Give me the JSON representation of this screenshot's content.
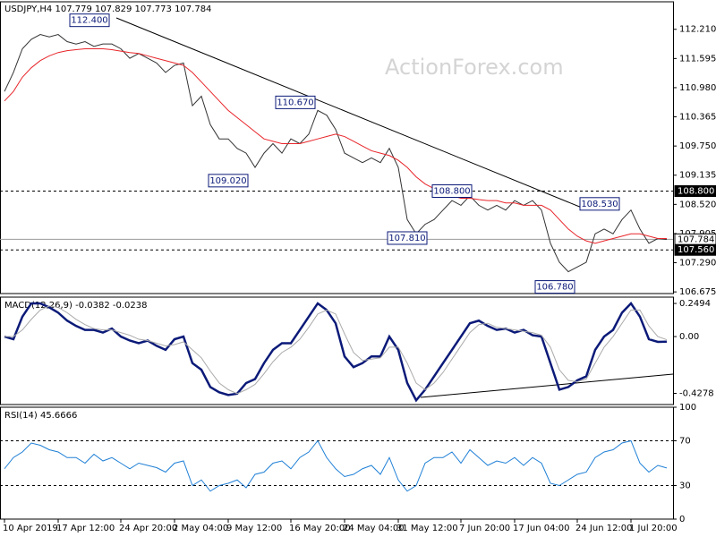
{
  "chart_data": [
    {
      "type": "line",
      "title": "USDJPY,H4  107.779 107.829 107.773 107.784",
      "watermark": "ActionForex.com",
      "categories": [
        "10 Apr 2019",
        null,
        null,
        null,
        null,
        null,
        "17 Apr 12:00",
        null,
        null,
        null,
        null,
        null,
        null,
        "24 Apr 20:00",
        null,
        null,
        null,
        null,
        null,
        "2 May 04:00",
        null,
        null,
        null,
        null,
        null,
        "9 May 12:00",
        null,
        null,
        null,
        null,
        null,
        null,
        "16 May 20:00",
        null,
        null,
        null,
        null,
        null,
        "24 May 04:00",
        null,
        null,
        null,
        null,
        null,
        "31 May 12:00",
        null,
        null,
        null,
        null,
        null,
        null,
        "7 Jun 20:00",
        null,
        null,
        null,
        null,
        null,
        "17 Jun 04:00",
        null,
        null,
        null,
        null,
        null,
        null,
        "24 Jun 12:00",
        null,
        null,
        null,
        null,
        null,
        "1 Jul 20:00",
        null,
        null,
        null,
        null
      ],
      "series": [
        {
          "color": "#333333",
          "values": [
            110.9,
            111.3,
            111.8,
            112.0,
            112.1,
            112.05,
            112.1,
            111.95,
            111.9,
            111.95,
            111.85,
            111.9,
            111.9,
            111.8,
            111.6,
            111.7,
            111.6,
            111.5,
            111.3,
            111.45,
            111.5,
            110.6,
            110.8,
            110.2,
            109.9,
            109.9,
            109.7,
            109.6,
            109.3,
            109.6,
            109.8,
            109.6,
            109.9,
            109.8,
            110.0,
            110.5,
            110.4,
            110.1,
            109.6,
            109.5,
            109.4,
            109.5,
            109.4,
            109.7,
            109.3,
            108.2,
            107.9,
            108.1,
            108.2,
            108.4,
            108.6,
            108.5,
            108.7,
            108.5,
            108.4,
            108.5,
            108.4,
            108.6,
            108.5,
            108.6,
            108.4,
            107.7,
            107.3,
            107.1,
            107.2,
            107.3,
            107.9,
            108.0,
            107.9,
            108.2,
            108.4,
            108.0,
            107.7,
            107.8,
            107.78
          ]
        },
        {
          "color": "#e8252a",
          "values": [
            110.7,
            110.9,
            111.2,
            111.4,
            111.55,
            111.65,
            111.72,
            111.76,
            111.78,
            111.8,
            111.8,
            111.8,
            111.78,
            111.75,
            111.72,
            111.7,
            111.65,
            111.6,
            111.55,
            111.5,
            111.45,
            111.3,
            111.1,
            110.9,
            110.7,
            110.5,
            110.35,
            110.2,
            110.05,
            109.9,
            109.85,
            109.8,
            109.8,
            109.8,
            109.85,
            109.9,
            109.95,
            110.0,
            109.95,
            109.85,
            109.75,
            109.65,
            109.6,
            109.55,
            109.45,
            109.3,
            109.1,
            108.95,
            108.85,
            108.75,
            108.7,
            108.65,
            108.65,
            108.62,
            108.6,
            108.6,
            108.55,
            108.55,
            108.5,
            108.5,
            108.5,
            108.4,
            108.2,
            108.0,
            107.85,
            107.75,
            107.7,
            107.75,
            107.8,
            107.85,
            107.9,
            107.9,
            107.85,
            107.8,
            107.8
          ]
        }
      ],
      "ylim": [
        106.64,
        112.79
      ],
      "yticks": [
        {
          "value": 112.21,
          "label": "112.210"
        },
        {
          "value": 111.595,
          "label": "111.595"
        },
        {
          "value": 110.98,
          "label": "110.980"
        },
        {
          "value": 110.365,
          "label": "110.365"
        },
        {
          "value": 109.75,
          "label": "109.750"
        },
        {
          "value": 109.135,
          "label": "109.135"
        },
        {
          "value": 108.52,
          "label": "108.520"
        },
        {
          "value": 107.905,
          "label": "107.905"
        },
        {
          "value": 107.29,
          "label": "107.290"
        },
        {
          "value": 106.675,
          "label": "106.675"
        }
      ],
      "levels": [
        {
          "value": 108.8,
          "label": "108.800",
          "style": "dashed"
        },
        {
          "value": 107.784,
          "label": "107.784",
          "style": "solid"
        },
        {
          "value": 107.56,
          "label": "107.560",
          "style": "dashed"
        }
      ],
      "annotations": [
        {
          "value": 112.4,
          "label": "112.400"
        },
        {
          "value": 110.67,
          "label": "110.670"
        },
        {
          "value": 109.02,
          "label": "109.020"
        },
        {
          "value": 108.8,
          "label": "108.800"
        },
        {
          "value": 107.81,
          "label": "107.810"
        },
        {
          "value": 108.53,
          "label": "108.530"
        },
        {
          "value": 106.78,
          "label": "106.780"
        }
      ]
    },
    {
      "type": "line",
      "title": "MACD(12,26,9) -0.0382 -0.0238",
      "series": [
        {
          "color": "#0b1a78",
          "values": [
            0.0,
            -0.02,
            0.15,
            0.25,
            0.25,
            0.22,
            0.18,
            0.12,
            0.08,
            0.05,
            0.05,
            0.03,
            0.06,
            0.0,
            -0.03,
            -0.05,
            -0.03,
            -0.07,
            -0.1,
            -0.02,
            0.0,
            -0.2,
            -0.25,
            -0.38,
            -0.42,
            -0.44,
            -0.43,
            -0.35,
            -0.32,
            -0.2,
            -0.1,
            -0.05,
            -0.05,
            0.05,
            0.15,
            0.25,
            0.2,
            0.1,
            -0.15,
            -0.23,
            -0.2,
            -0.15,
            -0.15,
            0.0,
            -0.1,
            -0.35,
            -0.48,
            -0.4,
            -0.3,
            -0.2,
            -0.1,
            0.0,
            0.1,
            0.12,
            0.08,
            0.05,
            0.06,
            0.03,
            0.05,
            0.01,
            0.0,
            -0.2,
            -0.4,
            -0.38,
            -0.33,
            -0.3,
            -0.1,
            0.0,
            0.05,
            0.18,
            0.25,
            0.15,
            -0.02,
            -0.04,
            -0.0382
          ]
        },
        {
          "color": "#aaaaaa",
          "values": [
            0.0,
            0.0,
            0.05,
            0.13,
            0.2,
            0.23,
            0.22,
            0.18,
            0.13,
            0.09,
            0.06,
            0.05,
            0.05,
            0.03,
            0.01,
            -0.02,
            -0.03,
            -0.05,
            -0.07,
            -0.06,
            -0.04,
            -0.1,
            -0.16,
            -0.26,
            -0.35,
            -0.4,
            -0.43,
            -0.4,
            -0.36,
            -0.28,
            -0.19,
            -0.12,
            -0.08,
            -0.02,
            0.07,
            0.17,
            0.2,
            0.17,
            0.02,
            -0.12,
            -0.18,
            -0.17,
            -0.16,
            -0.08,
            -0.08,
            -0.2,
            -0.35,
            -0.4,
            -0.35,
            -0.27,
            -0.17,
            -0.07,
            0.03,
            0.09,
            0.1,
            0.07,
            0.06,
            0.05,
            0.04,
            0.03,
            0.01,
            -0.08,
            -0.25,
            -0.33,
            -0.34,
            -0.32,
            -0.2,
            -0.08,
            0.0,
            0.1,
            0.2,
            0.2,
            0.08,
            0.0,
            -0.0238
          ]
        }
      ],
      "ylim": [
        -0.512,
        0.297
      ],
      "yticks": [
        0.2494,
        {
          "value": 0,
          "label": "0.00"
        },
        -0.4278
      ]
    },
    {
      "type": "line",
      "title": "RSI(14) 45.6666",
      "series": [
        {
          "color": "#1e7fd6",
          "values": [
            45,
            55,
            60,
            68,
            66,
            62,
            60,
            55,
            55,
            50,
            58,
            52,
            55,
            50,
            45,
            50,
            48,
            46,
            42,
            50,
            52,
            30,
            35,
            25,
            30,
            32,
            35,
            28,
            40,
            42,
            50,
            52,
            45,
            55,
            60,
            70,
            55,
            45,
            38,
            40,
            45,
            48,
            40,
            55,
            35,
            25,
            30,
            50,
            55,
            55,
            60,
            50,
            62,
            55,
            48,
            52,
            50,
            55,
            48,
            55,
            50,
            32,
            30,
            35,
            40,
            42,
            55,
            60,
            62,
            68,
            70,
            50,
            42,
            48,
            45.6666
          ]
        }
      ],
      "ylim": [
        0,
        100
      ],
      "yticks": [
        100,
        70,
        30,
        0
      ],
      "levels": [
        {
          "value": 70,
          "style": "dashed"
        },
        {
          "value": 30,
          "style": "dashed"
        }
      ]
    }
  ]
}
